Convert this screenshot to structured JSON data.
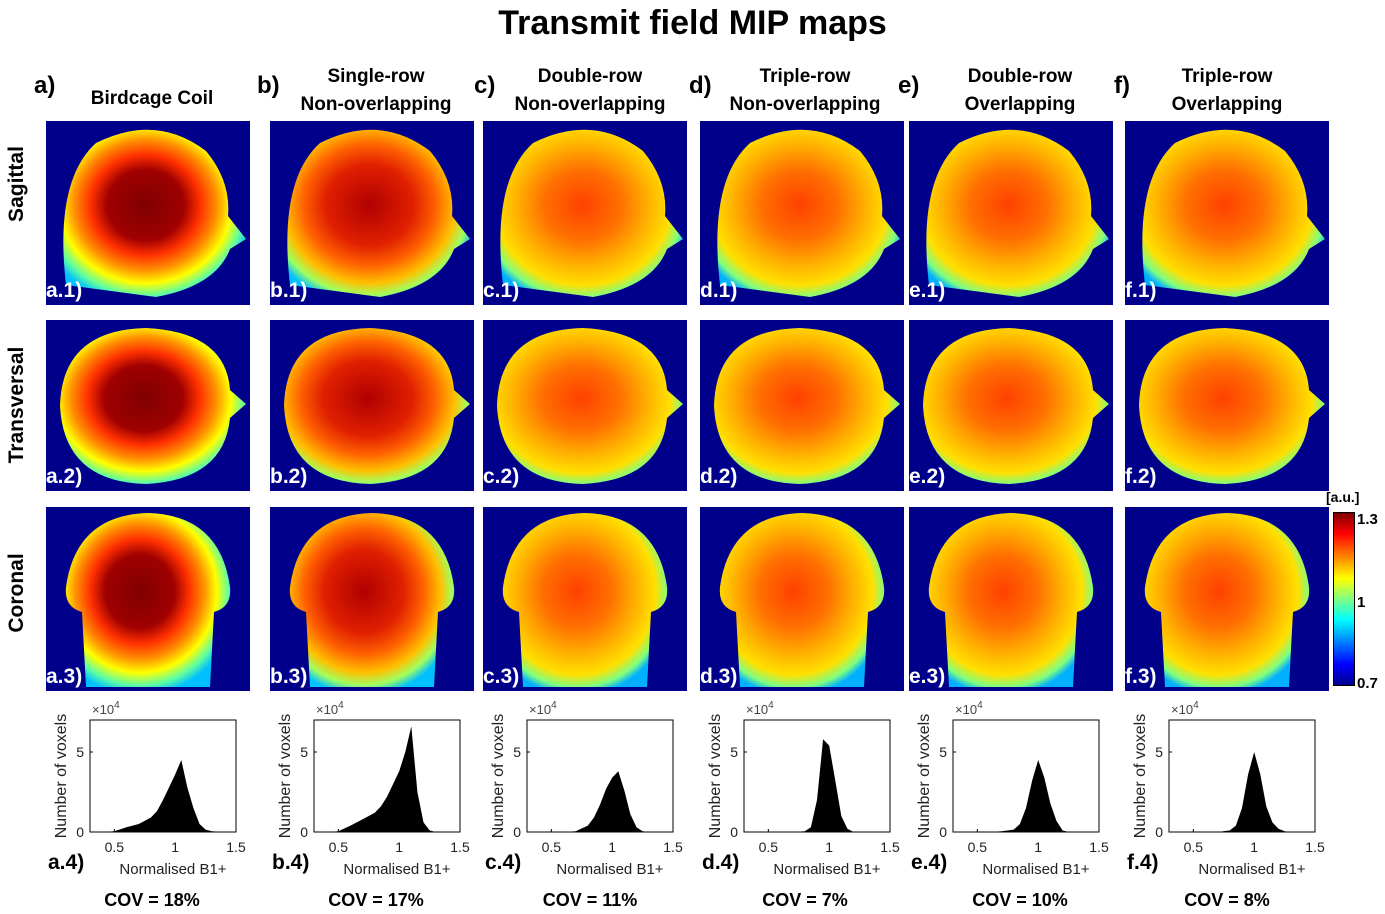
{
  "title": "Transmit field MIP maps",
  "columns": [
    {
      "letter": "a)",
      "line1": "Birdcage Coil",
      "line2": "",
      "panels": [
        "a.1)",
        "a.2)",
        "a.3)",
        "a.4)"
      ],
      "cov": "COV = 18%"
    },
    {
      "letter": "b)",
      "line1": "Single-row",
      "line2": "Non-overlapping",
      "panels": [
        "b.1)",
        "b.2)",
        "b.3)",
        "b.4)"
      ],
      "cov": "COV = 17%"
    },
    {
      "letter": "c)",
      "line1": "Double-row",
      "line2": "Non-overlapping",
      "panels": [
        "c.1)",
        "c.2)",
        "c.3)",
        "c.4)"
      ],
      "cov": "COV = 11%"
    },
    {
      "letter": "d)",
      "line1": "Triple-row",
      "line2": "Non-overlapping",
      "panels": [
        "d.1)",
        "d.2)",
        "d.3)",
        "d.4)"
      ],
      "cov": "COV = 7%"
    },
    {
      "letter": "e)",
      "line1": "Double-row",
      "line2": "Overlapping",
      "panels": [
        "e.1)",
        "e.2)",
        "e.3)",
        "e.4)"
      ],
      "cov": "COV = 10%"
    },
    {
      "letter": "f)",
      "line1": "Triple-row",
      "line2": "Overlapping",
      "panels": [
        "f.1)",
        "f.2)",
        "f.3)",
        "f.4)"
      ],
      "cov": "COV = 8%"
    }
  ],
  "rows": [
    "Sagittal",
    "Transversal",
    "Coronal"
  ],
  "colorbar": {
    "unit": "[a.u.]",
    "max": "1.3",
    "mid": "1",
    "min": "0.7"
  },
  "chart_data": {
    "type": "area",
    "description": "Histograms of normalised B1+ per coil configuration",
    "xlabel": "Normalised B1+",
    "ylabel": "Number of voxels",
    "yexponent": "×10",
    "yexponent_power": "4",
    "xlim": [
      0.3,
      1.5
    ],
    "ylim": [
      0,
      7
    ],
    "xticks": [
      "0.5",
      "1",
      "1.5"
    ],
    "yticks": [
      "0",
      "5"
    ],
    "x": [
      0.3,
      0.4,
      0.5,
      0.6,
      0.7,
      0.8,
      0.85,
      0.9,
      0.95,
      1.0,
      1.05,
      1.1,
      1.15,
      1.2,
      1.25,
      1.3,
      1.4,
      1.5
    ],
    "series": [
      {
        "name": "Birdcage Coil",
        "values": [
          0,
          0,
          0.05,
          0.3,
          0.5,
          0.9,
          1.3,
          2.0,
          2.8,
          3.6,
          4.5,
          2.8,
          1.5,
          0.5,
          0.15,
          0.05,
          0,
          0
        ]
      },
      {
        "name": "Single-row Non-overlapping",
        "values": [
          0,
          0,
          0.05,
          0.4,
          0.8,
          1.2,
          1.6,
          2.2,
          3.0,
          3.8,
          5.0,
          6.6,
          2.5,
          0.6,
          0.1,
          0,
          0,
          0
        ]
      },
      {
        "name": "Double-row Non-overlapping",
        "values": [
          0,
          0,
          0,
          0,
          0.05,
          0.4,
          0.9,
          1.7,
          2.7,
          3.4,
          3.8,
          2.6,
          1.1,
          0.3,
          0.05,
          0,
          0,
          0
        ]
      },
      {
        "name": "Triple-row Non-overlapping",
        "values": [
          0,
          0,
          0,
          0,
          0,
          0.05,
          0.3,
          2.0,
          5.8,
          5.4,
          3.2,
          1.0,
          0.2,
          0,
          0,
          0,
          0,
          0
        ]
      },
      {
        "name": "Double-row Overlapping",
        "values": [
          0,
          0,
          0,
          0,
          0.05,
          0.15,
          0.5,
          1.5,
          3.2,
          4.5,
          3.4,
          1.8,
          0.7,
          0.1,
          0,
          0,
          0,
          0
        ]
      },
      {
        "name": "Triple-row Overlapping",
        "values": [
          0,
          0,
          0,
          0,
          0,
          0.1,
          0.4,
          1.5,
          3.6,
          5.0,
          3.6,
          1.6,
          0.6,
          0.2,
          0.05,
          0,
          0,
          0
        ]
      }
    ]
  }
}
